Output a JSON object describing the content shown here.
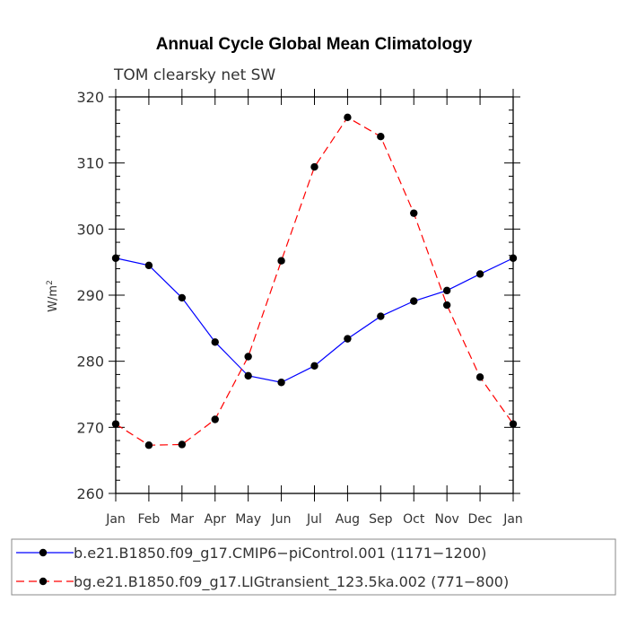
{
  "chart_data": {
    "type": "line",
    "title": "Annual Cycle Global Mean Climatology",
    "subtitle": "TOM clearsky net SW",
    "ylabel": "W/m",
    "ylabel_sup": "2",
    "xlabel": "",
    "ylim": [
      260,
      320
    ],
    "yticks": [
      260,
      270,
      280,
      290,
      300,
      310,
      320
    ],
    "categories": [
      "Jan",
      "Feb",
      "Mar",
      "Apr",
      "May",
      "Jun",
      "Jul",
      "Aug",
      "Sep",
      "Oct",
      "Nov",
      "Dec",
      "Jan"
    ],
    "grid": false,
    "legend_position": "bottom",
    "series": [
      {
        "name": "b.e21.B1850.f09_g17.CMIP6−piControl.001 (1171−1200)",
        "color": "#0000ff",
        "dash": "solid",
        "marker": "circle",
        "values": [
          295.6,
          294.5,
          289.6,
          282.9,
          277.8,
          276.8,
          279.3,
          283.4,
          286.8,
          289.1,
          290.7,
          293.2,
          295.6
        ]
      },
      {
        "name": "bg.e21.B1850.f09_g17.LIGtransient_123.5ka.002 (771−800)",
        "color": "#ff0000",
        "dash": "dashed",
        "marker": "circle",
        "values": [
          270.5,
          267.3,
          267.4,
          271.2,
          280.7,
          295.2,
          309.4,
          316.9,
          314.0,
          302.4,
          288.5,
          277.6,
          270.5
        ]
      }
    ]
  }
}
